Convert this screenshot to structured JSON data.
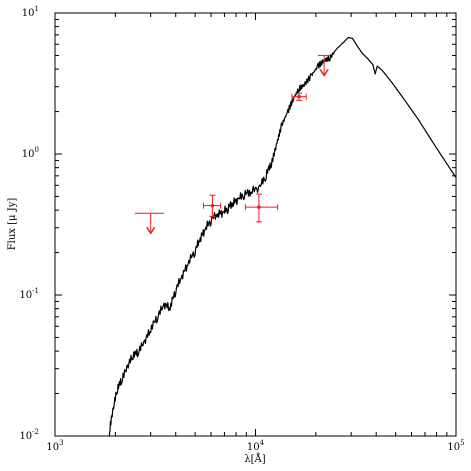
{
  "chart_data": {
    "type": "line",
    "title": "",
    "xlabel": "λ[Å]",
    "ylabel": "Flux [μ Jy]",
    "x_scale": "log",
    "y_scale": "log",
    "xlim": [
      1000,
      100000
    ],
    "ylim": [
      0.01,
      10
    ],
    "grid": false,
    "x_ticks": [
      {
        "value": 1000,
        "label": "10^3"
      },
      {
        "value": 10000,
        "label": "10^4"
      },
      {
        "value": 100000,
        "label": "10^5"
      }
    ],
    "y_ticks": [
      {
        "value": 0.01,
        "label": "10^-2"
      },
      {
        "value": 0.1,
        "label": "10^-1"
      },
      {
        "value": 1,
        "label": "10^0"
      },
      {
        "value": 10,
        "label": "10^1"
      }
    ],
    "colors": {
      "model": "#000000",
      "photometry": "#e8201d"
    },
    "series": [
      {
        "type": "line",
        "x": [
          1870,
          1950,
          2050,
          2150,
          2300,
          2450,
          2600,
          2800,
          3000,
          3250,
          3500,
          3750,
          4000,
          4300,
          4600,
          5000,
          5300,
          5600,
          6000,
          6500,
          6900,
          7300,
          7700,
          8200,
          8800,
          9500,
          10500,
          11300,
          12000,
          12800,
          13500,
          14500,
          15500,
          16500,
          17500,
          19000,
          20500,
          22000,
          23500,
          25500,
          27500,
          29000,
          30500,
          32000,
          34000,
          36500,
          38500,
          39500,
          40500,
          43000,
          48000,
          55000,
          65000,
          80000,
          100000
        ],
        "y": [
          0.0105,
          0.015,
          0.021,
          0.024,
          0.03,
          0.036,
          0.038,
          0.045,
          0.055,
          0.068,
          0.082,
          0.078,
          0.105,
          0.13,
          0.16,
          0.2,
          0.24,
          0.28,
          0.33,
          0.36,
          0.37,
          0.4,
          0.43,
          0.46,
          0.5,
          0.52,
          0.56,
          0.68,
          0.85,
          1.2,
          1.6,
          2.0,
          2.5,
          2.9,
          3.1,
          3.6,
          4.2,
          4.6,
          4.8,
          5.6,
          6.2,
          6.7,
          6.6,
          5.9,
          5.2,
          4.7,
          4.3,
          3.7,
          4.2,
          3.9,
          3.2,
          2.45,
          1.75,
          1.1,
          0.68
        ]
      }
    ],
    "photometry": [
      {
        "x": 6100,
        "y": 0.43,
        "x_err": [
          600,
          600
        ],
        "y_err": [
          0.07,
          0.08
        ]
      },
      {
        "x": 10400,
        "y": 0.42,
        "x_err": [
          1500,
          2500
        ],
        "y_err": [
          0.09,
          0.1
        ]
      },
      {
        "x": 16500,
        "y": 2.55,
        "x_err": [
          1300,
          1400
        ],
        "y_err": [
          0.15,
          0.15
        ]
      }
    ],
    "upper_limits": [
      {
        "x": 3000,
        "y": 0.38,
        "x_err": [
          500,
          500
        ]
      },
      {
        "x": 22000,
        "y": 5.0,
        "x_err": [
          1500,
          1500
        ]
      }
    ]
  }
}
